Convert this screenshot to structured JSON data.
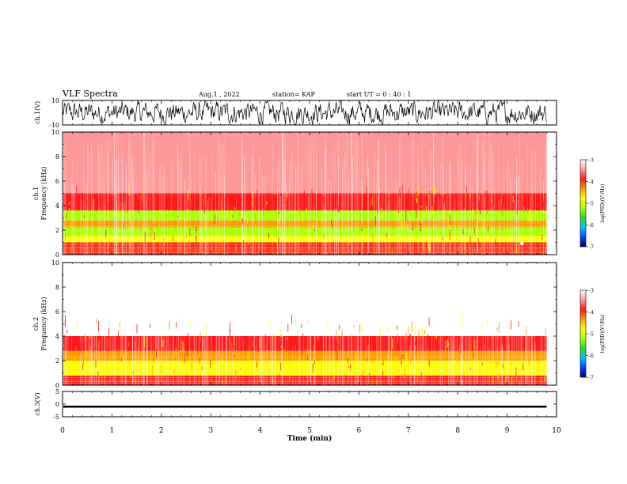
{
  "header": {
    "title": "VLF Spectra",
    "date": "Aug.1 , 2022",
    "station": "station= KAP",
    "start": "start UT = 0 : 40 : 1"
  },
  "colors": {
    "colorbar": [
      "#00007a",
      "#0044ff",
      "#00c8ff",
      "#22dd22",
      "#aaff00",
      "#ffff00",
      "#ff9900",
      "#ff1a1a",
      "#ff9999",
      "#ffffff"
    ],
    "spectrogram_base": "#ff5555",
    "waveform": "#000000"
  },
  "chart_data": [
    {
      "type": "line",
      "name": "ch1-waveform",
      "ylabel": "ch.1(V)",
      "ylim": [
        -10,
        10
      ],
      "yticks": [
        "10",
        "-10"
      ],
      "xlim": [
        0,
        10
      ],
      "note_amplitude_range": [
        -10,
        10
      ]
    },
    {
      "type": "heatmap",
      "name": "ch1-spectrogram",
      "ylabel_lines": [
        "ch.1",
        "Frequency (kHz)"
      ],
      "ylim": [
        0,
        10
      ],
      "yticks": [
        "0",
        "2",
        "4",
        "6",
        "8",
        "10"
      ],
      "xlim": [
        0,
        10
      ],
      "data_end_min": 9.8,
      "colorbar": {
        "label": "log(PSD)(V²/Hz)",
        "ticks": [
          "-3",
          "-4",
          "-5",
          "-6",
          "-7"
        ],
        "range": [
          -7,
          -3
        ]
      },
      "bands": [
        {
          "from_khz": 0,
          "to_khz": 1.0,
          "log_psd": -3.7
        },
        {
          "from_khz": 1.0,
          "to_khz": 1.5,
          "log_psd": -4.6
        },
        {
          "from_khz": 1.5,
          "to_khz": 2.2,
          "log_psd": -5.1
        },
        {
          "from_khz": 2.2,
          "to_khz": 2.8,
          "log_psd": -4.4
        },
        {
          "from_khz": 2.8,
          "to_khz": 3.6,
          "log_psd": -5.1
        },
        {
          "from_khz": 3.6,
          "to_khz": 5.0,
          "log_psd": -4.1
        },
        {
          "from_khz": 5.0,
          "to_khz": 10.0,
          "log_psd": -3.4
        }
      ]
    },
    {
      "type": "heatmap",
      "name": "ch2-spectrogram",
      "ylabel_lines": [
        "ch.2",
        "Frequency (kHz)"
      ],
      "ylim": [
        0,
        10
      ],
      "yticks": [
        "0",
        "2",
        "4",
        "6",
        "8",
        "10"
      ],
      "xlim": [
        0,
        10
      ],
      "data_end_min": 9.8,
      "colorbar": {
        "label": "log(PSD)(V²/Hz)",
        "ticks": [
          "-3",
          "-4",
          "-5",
          "-6",
          "-7"
        ],
        "range": [
          -7,
          -3
        ]
      },
      "bands": [
        {
          "from_khz": 0,
          "to_khz": 0.8,
          "log_psd": -3.7
        },
        {
          "from_khz": 0.8,
          "to_khz": 2.0,
          "log_psd": -5.0
        },
        {
          "from_khz": 2.0,
          "to_khz": 2.8,
          "log_psd": -4.3
        },
        {
          "from_khz": 2.8,
          "to_khz": 4.0,
          "log_psd": -3.8
        },
        {
          "from_khz": 4.0,
          "to_khz": 10.0,
          "log_psd": -3.15
        }
      ]
    },
    {
      "type": "line",
      "name": "ch3-waveform",
      "ylabel": "ch.3(V)",
      "ylim": [
        -5,
        5
      ],
      "yticks": [
        "5",
        "0",
        "-5"
      ],
      "xlim": [
        0,
        10
      ],
      "trace_level_v": -1,
      "trace_halfwidth_v": 0.4,
      "xlabel": "Time (min)",
      "xticks": [
        "0",
        "1",
        "2",
        "3",
        "4",
        "5",
        "6",
        "7",
        "8",
        "9",
        "10"
      ]
    }
  ]
}
